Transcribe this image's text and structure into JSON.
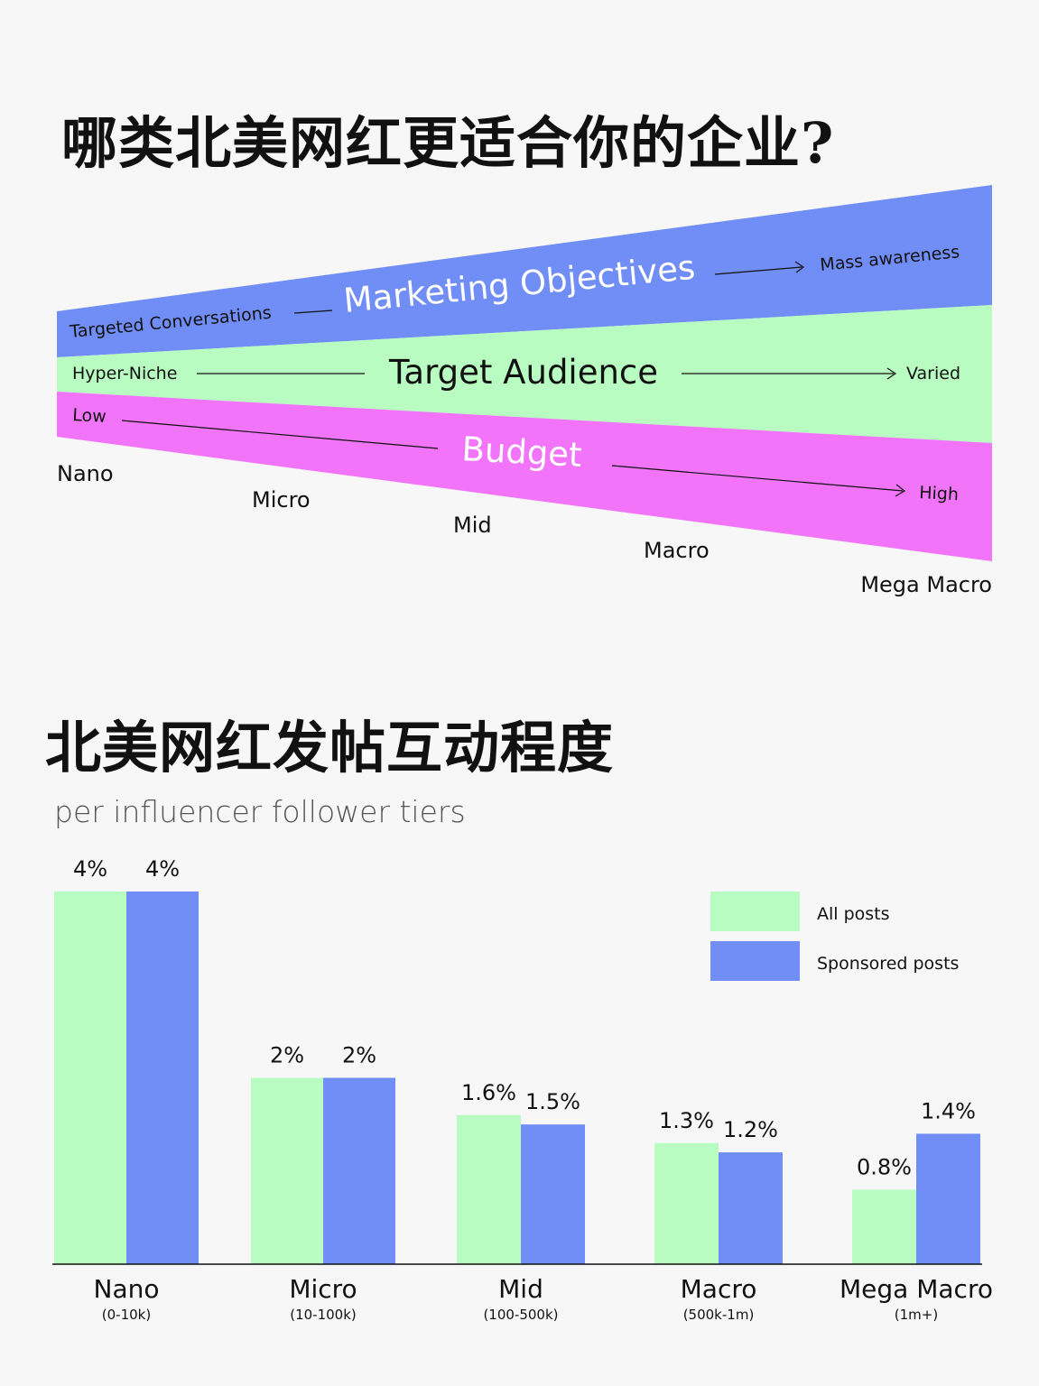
{
  "colors": {
    "blue": "#718ef7",
    "green": "#b8fcc1",
    "pink": "#f274f8",
    "all_posts": "#b8fcc1",
    "sponsored_posts": "#718ef7",
    "text": "#111111",
    "background": "#f7f7f7"
  },
  "title_top": "哪类北美网红更适合你的企业?",
  "funnel": {
    "marketing": {
      "left": "Targeted Conversations",
      "center": "Marketing Objectives",
      "right": "Mass awareness"
    },
    "audience": {
      "left": "Hyper-Niche",
      "center": "Target Audience",
      "right": "Varied"
    },
    "budget": {
      "left": "Low",
      "center": "Budget",
      "right": "High"
    },
    "tiers": [
      "Nano",
      "Micro",
      "Mid",
      "Macro",
      "Mega Macro"
    ]
  },
  "title_bottom": "北美网红发帖互动程度",
  "subtitle": "per influencer follower tiers",
  "chart_data": {
    "type": "bar",
    "categories": [
      "Nano",
      "Micro",
      "Mid",
      "Macro",
      "Mega Macro"
    ],
    "category_ranges": [
      "(0-10k)",
      "(10-100k)",
      "(100-500k)",
      "(500k-1m)",
      "(1m+)"
    ],
    "series": [
      {
        "name": "All posts",
        "values": [
          4,
          2,
          1.6,
          1.3,
          0.8
        ],
        "labels": [
          "4%",
          "2%",
          "1.6%",
          "1.3%",
          "0.8%"
        ],
        "color": "#b8fcc1"
      },
      {
        "name": "Sponsored posts",
        "values": [
          4,
          2,
          1.5,
          1.2,
          1.4
        ],
        "labels": [
          "4%",
          "2%",
          "1.5%",
          "1.2%",
          "1.4%"
        ],
        "color": "#718ef7"
      }
    ],
    "ylim": [
      0,
      4
    ],
    "legend": "top-right",
    "grid": false
  }
}
